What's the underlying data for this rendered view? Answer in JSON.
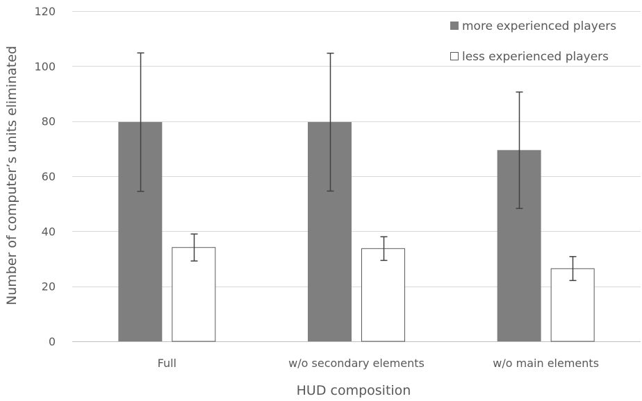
{
  "chart_data": {
    "type": "bar",
    "title": "",
    "xlabel": "HUD composition",
    "ylabel": "Number of computer’s units eliminated",
    "ylim": [
      0,
      120
    ],
    "yticks": [
      0,
      20,
      40,
      60,
      80,
      100,
      120
    ],
    "grid": "horizontal",
    "legend_position": "top-right",
    "categories": [
      "Full",
      "w/o secondary elements",
      "w/o main elements"
    ],
    "series": [
      {
        "name": "more experienced players",
        "color": "#7f7f7f",
        "values": [
          79.7,
          79.7,
          69.5
        ],
        "error_low": [
          54.5,
          54.6,
          48.3
        ],
        "error_high": [
          104.8,
          104.7,
          90.6
        ]
      },
      {
        "name": "less experienced players",
        "color": "#ffffff",
        "values": [
          34.1,
          33.7,
          26.4
        ],
        "error_low": [
          29.2,
          29.4,
          22.1
        ],
        "error_high": [
          39.0,
          38.0,
          30.8
        ]
      }
    ]
  }
}
